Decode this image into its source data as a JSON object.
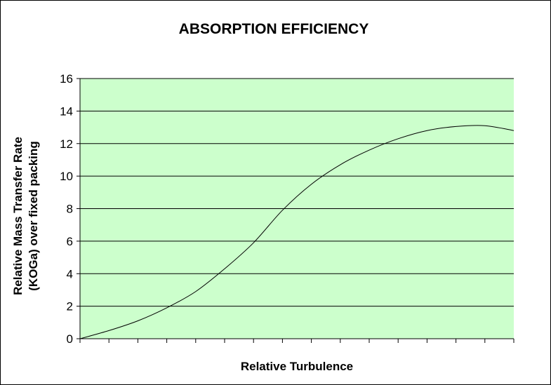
{
  "chart_data": {
    "type": "line",
    "title": "ABSORPTION EFFICIENCY",
    "xlabel": "Relative Turbulence",
    "ylabel_lines": [
      "Relative Mass Transfer Rate",
      "(KOGa) over fixed packing"
    ],
    "ylim": [
      0,
      16
    ],
    "yticks": [
      0,
      2,
      4,
      6,
      8,
      10,
      12,
      14,
      16
    ],
    "x_tick_count": 15,
    "xlim": [
      0,
      15
    ],
    "grid": true,
    "legend": "none",
    "colors": {
      "plot_background": "#ccffcc",
      "line": "#000000",
      "gridline": "#000000"
    },
    "series": [
      {
        "x": [
          0,
          1,
          2,
          3,
          4,
          5,
          6,
          7,
          8,
          9,
          10,
          11,
          12,
          13,
          14,
          15
        ],
        "values": [
          0,
          0.5,
          1.1,
          1.9,
          2.9,
          4.3,
          5.9,
          7.9,
          9.5,
          10.7,
          11.6,
          12.3,
          12.8,
          13.05,
          13.1,
          12.8
        ]
      }
    ]
  }
}
